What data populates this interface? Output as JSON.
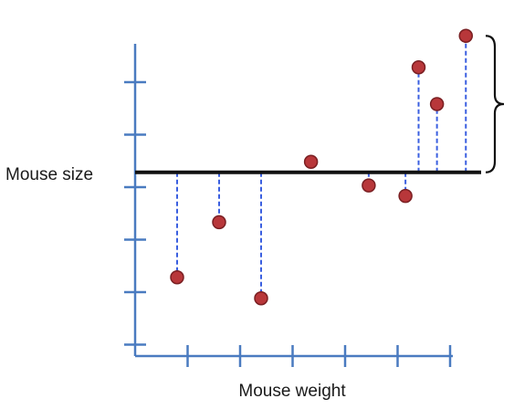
{
  "chart_data": {
    "type": "scatter",
    "xlabel": "Mouse weight",
    "ylabel": "Mouse size",
    "xlim": [
      0,
      6
    ],
    "ylim": [
      0,
      6
    ],
    "grid": false,
    "mean_line": 3.5,
    "x_ticks": [
      1,
      2,
      3,
      4,
      5,
      6
    ],
    "y_ticks": [
      1,
      2,
      3,
      4,
      5,
      6
    ],
    "points": [
      {
        "x": 0.8,
        "y": 1.5
      },
      {
        "x": 1.6,
        "y": 2.55
      },
      {
        "x": 2.4,
        "y": 1.1
      },
      {
        "x": 3.35,
        "y": 3.7
      },
      {
        "x": 4.45,
        "y": 3.25
      },
      {
        "x": 5.15,
        "y": 3.05
      },
      {
        "x": 5.4,
        "y": 5.5
      },
      {
        "x": 5.75,
        "y": 4.8
      },
      {
        "x": 6.3,
        "y": 6.1
      }
    ],
    "colors": {
      "axis": "#4a7bc0",
      "point_fill": "#b8373a",
      "point_stroke": "#7a1f22",
      "residual": "#3a5fe0",
      "mean_line": "#111111"
    }
  }
}
